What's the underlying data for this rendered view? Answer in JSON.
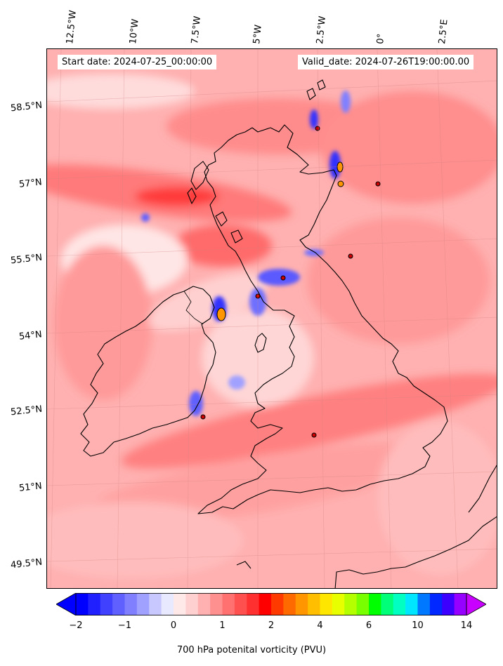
{
  "map": {
    "start_label": "Start date: 2024-07-25_00:00:00",
    "valid_label": "Valid_date: 2024-07-26T19:00:00.00",
    "lon_ticks": [
      "12.5°W",
      "10°W",
      "7.5°W",
      "5°W",
      "2.5°W",
      "0°",
      "2.5°E"
    ],
    "lat_ticks": [
      "58.5°N",
      "57°N",
      "55.5°N",
      "54°N",
      "52.5°N",
      "51°N",
      "49.5°N"
    ],
    "field_name": "700 hPa potential vorticity",
    "coastline_color": "#000000"
  },
  "colorbar": {
    "label": "700 hPa potenital vorticity (PVU)",
    "tick_labels": [
      "−2",
      "−1",
      "0",
      "1",
      "2",
      "4",
      "6",
      "10",
      "14"
    ],
    "extend": "both",
    "colors": [
      "#0000ff",
      "#2020ff",
      "#4040ff",
      "#6060ff",
      "#8080ff",
      "#a0a0ff",
      "#c8c8ff",
      "#e8e8ff",
      "#ffe8e8",
      "#ffd0d0",
      "#ffb0b0",
      "#ff9090",
      "#ff7070",
      "#ff5050",
      "#ff3030",
      "#ff0000",
      "#ff3a00",
      "#ff6a00",
      "#ff9600",
      "#ffbe00",
      "#ffe600",
      "#e8ff00",
      "#b4ff00",
      "#78ff00",
      "#00ff00",
      "#00ff78",
      "#00ffc0",
      "#00e6ff",
      "#0078ff",
      "#0028ff",
      "#3c00ff",
      "#9600ff"
    ],
    "under_color": "#0000ff",
    "over_color": "#c800ff"
  }
}
